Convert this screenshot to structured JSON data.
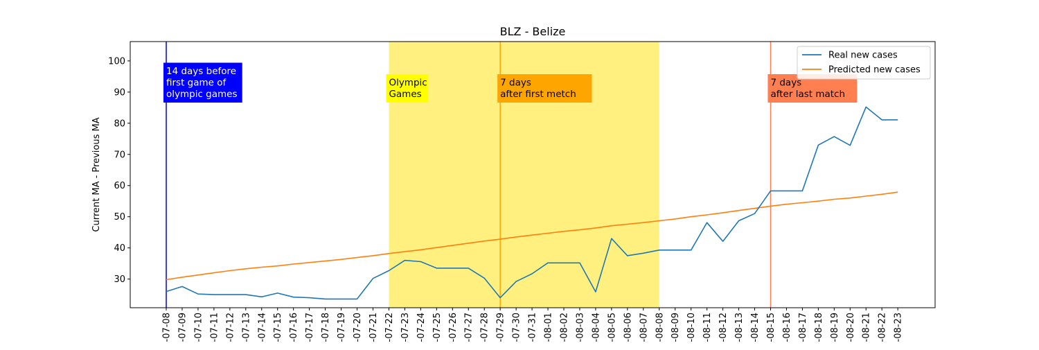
{
  "chart_data": {
    "type": "line",
    "title": "BLZ - Belize",
    "xlabel": "",
    "ylabel": "Current MA - Previous MA",
    "ylim": [
      20.8,
      106.2
    ],
    "yticks": [
      30,
      40,
      50,
      60,
      70,
      80,
      90,
      100
    ],
    "x_tick_labels": [
      "-07-08",
      "-07-09",
      "-07-10",
      "-07-11",
      "-07-12",
      "-07-13",
      "-07-14",
      "-07-15",
      "-07-16",
      "-07-17",
      "-07-18",
      "-07-19",
      "-07-20",
      "-07-21",
      "-07-22",
      "-07-23",
      "-07-24",
      "-07-25",
      "-07-26",
      "-07-27",
      "-07-28",
      "-07-29",
      "-07-30",
      "-07-31",
      "-08-01",
      "-08-02",
      "-08-03",
      "-08-04",
      "-08-05",
      "-08-06",
      "-08-07",
      "-08-08",
      "-08-09",
      "-08-10",
      "-08-11",
      "-08-12",
      "-08-13",
      "-08-14",
      "-08-15",
      "-08-16",
      "-08-17",
      "-08-18",
      "-08-19",
      "-08-20",
      "-08-21",
      "-08-22",
      "-08-23"
    ],
    "legend_position": "top-right",
    "series": [
      {
        "name": "Real new cases",
        "color": "#1f77b4",
        "values": [
          26.0,
          27.6,
          25.2,
          25.0,
          25.0,
          25.0,
          24.3,
          25.5,
          24.2,
          24.0,
          23.6,
          23.6,
          23.6,
          30.2,
          32.7,
          36.0,
          35.6,
          33.5,
          33.5,
          33.5,
          30.3,
          24.0,
          29.2,
          31.7,
          35.2,
          35.2,
          35.2,
          25.9,
          43.0,
          37.5,
          38.3,
          39.3,
          39.3,
          39.3,
          48.1,
          42.1,
          48.7,
          51.0,
          58.3,
          58.3,
          58.3,
          73.0,
          75.7,
          72.9,
          85.2,
          81.1,
          81.1
        ]
      },
      {
        "name": "Predicted new cases",
        "color": "#ff7f0e",
        "values": [
          29.8,
          30.6,
          31.3,
          32.0,
          32.7,
          33.3,
          33.8,
          34.2,
          34.8,
          35.3,
          35.8,
          36.3,
          36.9,
          37.5,
          38.2,
          38.8,
          39.4,
          40.1,
          40.8,
          41.5,
          42.2,
          42.8,
          43.5,
          44.1,
          44.7,
          45.3,
          45.8,
          46.4,
          47.1,
          47.6,
          48.1,
          48.7,
          49.3,
          50.0,
          50.6,
          51.3,
          52.0,
          52.7,
          53.4,
          54.0,
          54.5,
          55.0,
          55.6,
          56.0,
          56.6,
          57.2,
          57.9
        ]
      }
    ],
    "shaded_region": {
      "from_index": 14,
      "to_index": 31,
      "color": "#fff080"
    },
    "vertical_lines": [
      {
        "index": 0,
        "color": "#0000cd"
      },
      {
        "index": 21,
        "color": "#ffa500"
      },
      {
        "index": 38,
        "color": "#ff7f50"
      }
    ],
    "annotations": [
      {
        "lines": [
          "14 days before",
          "first game of",
          "olympic games"
        ],
        "bg": "#0000ff",
        "fg": "#ffffff",
        "index": 0
      },
      {
        "lines": [
          "Olympic",
          "Games"
        ],
        "bg": "#ffff00",
        "fg": "#000000",
        "index": 14
      },
      {
        "lines": [
          "7 days",
          "after first metch"
        ],
        "bg": "#ffa500",
        "fg": "#000000",
        "index": 21
      },
      {
        "lines": [
          "7 days",
          "after last match"
        ],
        "bg": "#ff7f50",
        "fg": "#000000",
        "index": 38
      }
    ]
  }
}
